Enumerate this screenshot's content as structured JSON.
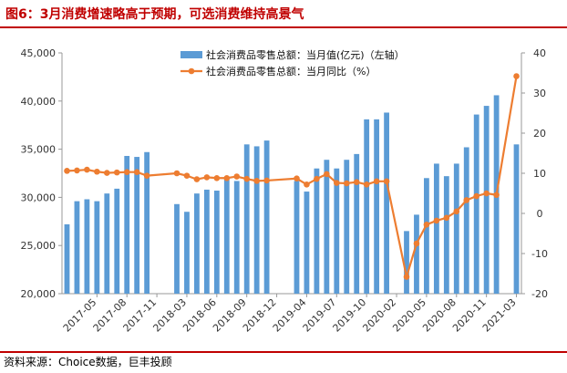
{
  "title": "图6：3月消费增速略高于预期，可选消费维持高景气",
  "source": "资料来源：Choice数据，巨丰投顾",
  "colors": {
    "bar": "#5b9bd5",
    "line": "#ed7d31",
    "accent": "#c00000"
  },
  "chart_data": {
    "type": "bar",
    "legend_position": "top",
    "grid": false,
    "x_tick_labels": [
      "2017-05",
      "2017-08",
      "2017-11",
      "2018-03",
      "2018-06",
      "2018-09",
      "2018-12",
      "2019-04",
      "2019-07",
      "2019-10",
      "2020-02",
      "2020-05",
      "2020-08",
      "2020-11",
      "2021-03"
    ],
    "x": [
      "2017-02",
      "2017-03",
      "2017-04",
      "2017-05",
      "2017-06",
      "2017-07",
      "2017-08",
      "2017-09",
      "2017-10",
      "2017-11",
      "2017-12",
      "2018-02",
      "2018-03",
      "2018-04",
      "2018-05",
      "2018-06",
      "2018-07",
      "2018-08",
      "2018-09",
      "2018-10",
      "2018-11",
      "2018-12",
      "2019-02",
      "2019-03",
      "2019-04",
      "2019-05",
      "2019-06",
      "2019-07",
      "2019-08",
      "2019-09",
      "2019-10",
      "2019-11",
      "2019-12",
      "2020-02",
      "2020-03",
      "2020-04",
      "2020-05",
      "2020-06",
      "2020-07",
      "2020-08",
      "2020-09",
      "2020-10",
      "2020-11",
      "2020-12",
      "2021-02",
      "2021-03"
    ],
    "y_left": {
      "min": 20000,
      "max": 45000,
      "ticks": [
        "20,000",
        "25,000",
        "30,000",
        "35,000",
        "40,000",
        "45,000"
      ]
    },
    "y_right": {
      "min": -20,
      "max": 40,
      "ticks": [
        "-20",
        "-10",
        "0",
        "10",
        "20",
        "30",
        "40"
      ]
    },
    "series": [
      {
        "name": "社会消费品零售总额：当月值(亿元)（左轴）",
        "type": "bar",
        "axis": "left",
        "values": [
          27200,
          29600,
          29800,
          29600,
          30400,
          30900,
          34300,
          34200,
          34700,
          null,
          null,
          29300,
          28500,
          30400,
          30800,
          30700,
          32100,
          31700,
          35500,
          35300,
          35900,
          null,
          null,
          31700,
          30600,
          33000,
          33900,
          33000,
          33900,
          34500,
          38100,
          38100,
          38800,
          null,
          26500,
          28200,
          32000,
          33500,
          32200,
          33500,
          35200,
          38600,
          39500,
          40600,
          null,
          35500
        ]
      },
      {
        "name": "社会消费品零售总额：当月同比（%）",
        "type": "line",
        "axis": "right",
        "values": [
          10.6,
          10.7,
          10.9,
          10.4,
          10.1,
          10.2,
          10.3,
          10.3,
          9.4,
          null,
          null,
          10.0,
          9.4,
          8.5,
          9.0,
          8.8,
          8.8,
          9.2,
          8.6,
          8.1,
          8.2,
          null,
          null,
          8.7,
          7.2,
          8.6,
          9.8,
          7.6,
          7.5,
          7.8,
          7.2,
          8.0,
          8.0,
          null,
          -15.8,
          -7.5,
          -2.8,
          -1.8,
          -1.1,
          0.5,
          3.3,
          4.3,
          5.0,
          4.6,
          null,
          34.2
        ]
      }
    ]
  }
}
